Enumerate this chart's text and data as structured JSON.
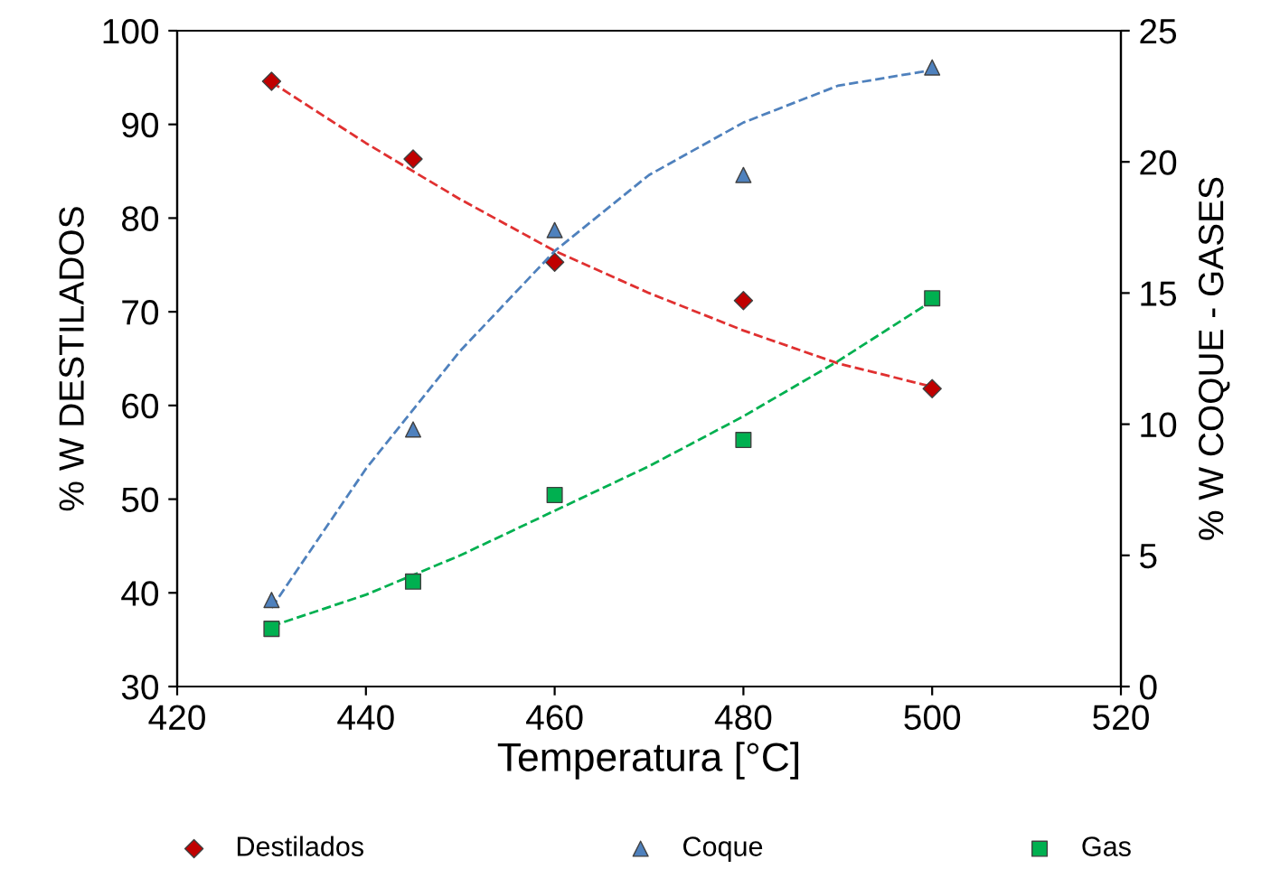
{
  "chart_data": {
    "type": "scatter",
    "xlabel": "Temperatura [°C]",
    "ylabel": "% W DESTILADOS",
    "y2label": "% W COQUE - GASES",
    "x": [
      430,
      445,
      460,
      480,
      500
    ],
    "xlim": [
      420,
      520
    ],
    "xticks": [
      420,
      440,
      460,
      480,
      500,
      520
    ],
    "ylim": [
      30,
      100
    ],
    "yticks": [
      30,
      40,
      50,
      60,
      70,
      80,
      90,
      100
    ],
    "y2lim": [
      0,
      25
    ],
    "y2ticks": [
      0,
      5,
      10,
      15,
      20,
      25
    ],
    "grid": false,
    "legend": "bottom",
    "series": [
      {
        "name": "Destilados",
        "color": "#c00000",
        "marker": "diamond",
        "values": [
          94.6,
          86.3,
          75.3,
          71.2,
          61.8
        ]
      },
      {
        "name": "Coque",
        "color": "#4f81bd",
        "marker": "triangle",
        "axis": "y2",
        "values": [
          3.3,
          9.8,
          17.4,
          19.5,
          23.6
        ]
      },
      {
        "name": "Gas",
        "color": "#00b050",
        "marker": "square",
        "axis": "y2",
        "values": [
          2.2,
          4.0,
          7.3,
          9.4,
          14.8
        ]
      },
      {
        "type": "line",
        "color": "#e03030",
        "line_style": "dashed",
        "marker": "none",
        "x": [
          430,
          440,
          450,
          460,
          470,
          480,
          490,
          500
        ],
        "values": [
          94.5,
          88,
          82,
          76.5,
          72,
          68,
          64.5,
          62
        ]
      },
      {
        "type": "line",
        "color": "#4f81bd",
        "line_style": "dashed",
        "marker": "none",
        "axis": "y2",
        "x": [
          430,
          440,
          450,
          460,
          470,
          480,
          490,
          500
        ],
        "values": [
          3.0,
          8.3,
          12.8,
          16.6,
          19.5,
          21.5,
          22.9,
          23.5
        ]
      },
      {
        "type": "line",
        "color": "#00b050",
        "line_style": "dashed",
        "marker": "none",
        "axis": "y2",
        "x": [
          430,
          440,
          450,
          460,
          470,
          480,
          490,
          500
        ],
        "values": [
          2.3,
          3.5,
          5.0,
          6.7,
          8.4,
          10.3,
          12.4,
          14.7
        ]
      }
    ]
  }
}
